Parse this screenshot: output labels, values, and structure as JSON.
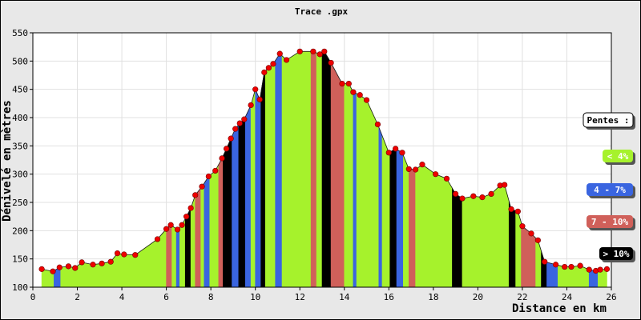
{
  "chart_data": {
    "type": "area",
    "title": "Trace .gpx",
    "xlabel": "Distance en km",
    "ylabel": "Dénivelé en mètres",
    "xlim": [
      0,
      26
    ],
    "ylim": [
      100,
      550
    ],
    "xticks": [
      "0",
      "2",
      "4",
      "6",
      "8",
      "10",
      "12",
      "14",
      "16",
      "18",
      "20",
      "22",
      "24",
      "26"
    ],
    "yticks": [
      "100",
      "150",
      "200",
      "250",
      "300",
      "350",
      "400",
      "450",
      "500",
      "550"
    ],
    "grid": true,
    "colors": {
      "lt4": "#a6f22c",
      "4to7": "#3a65e0",
      "7to10": "#d0605a",
      "gt10": "#000000",
      "point": "#ee0000",
      "background": "#ffffff",
      "frame": "#e8e8e8"
    },
    "legend": {
      "title": "Pentes :",
      "placement": "right",
      "items": [
        {
          "label": "< 4%",
          "class": "lt4"
        },
        {
          "label": "4 - 7%",
          "class": "4to7"
        },
        {
          "label": "7 - 10%",
          "class": "7to10"
        },
        {
          "label": "> 10%",
          "class": "gt10"
        }
      ]
    },
    "points": [
      [
        0.4,
        132
      ],
      [
        0.9,
        128
      ],
      [
        1.2,
        135
      ],
      [
        1.6,
        137
      ],
      [
        1.9,
        134
      ],
      [
        2.2,
        144
      ],
      [
        2.7,
        140
      ],
      [
        3.1,
        142
      ],
      [
        3.5,
        145
      ],
      [
        3.8,
        160
      ],
      [
        4.1,
        158
      ],
      [
        4.6,
        157
      ],
      [
        5.6,
        185
      ],
      [
        6.0,
        203
      ],
      [
        6.2,
        210
      ],
      [
        6.5,
        202
      ],
      [
        6.7,
        210
      ],
      [
        6.9,
        225
      ],
      [
        7.1,
        240
      ],
      [
        7.3,
        263
      ],
      [
        7.6,
        278
      ],
      [
        7.9,
        296
      ],
      [
        8.2,
        306
      ],
      [
        8.5,
        328
      ],
      [
        8.7,
        345
      ],
      [
        8.9,
        363
      ],
      [
        9.1,
        380
      ],
      [
        9.3,
        390
      ],
      [
        9.5,
        397
      ],
      [
        9.8,
        422
      ],
      [
        10.0,
        450
      ],
      [
        10.2,
        432
      ],
      [
        10.4,
        480
      ],
      [
        10.6,
        488
      ],
      [
        10.8,
        495
      ],
      [
        11.1,
        513
      ],
      [
        11.4,
        502
      ],
      [
        12.0,
        517
      ],
      [
        12.6,
        517
      ],
      [
        12.9,
        512
      ],
      [
        13.1,
        517
      ],
      [
        13.4,
        497
      ],
      [
        13.9,
        460
      ],
      [
        14.2,
        460
      ],
      [
        14.4,
        445
      ],
      [
        14.7,
        440
      ],
      [
        15.0,
        431
      ],
      [
        15.5,
        388
      ],
      [
        16.0,
        338
      ],
      [
        16.3,
        345
      ],
      [
        16.6,
        338
      ],
      [
        16.9,
        309
      ],
      [
        17.2,
        308
      ],
      [
        17.5,
        317
      ],
      [
        18.1,
        300
      ],
      [
        18.6,
        292
      ],
      [
        19.0,
        265
      ],
      [
        19.3,
        257
      ],
      [
        19.8,
        261
      ],
      [
        20.2,
        259
      ],
      [
        20.6,
        265
      ],
      [
        21.0,
        280
      ],
      [
        21.2,
        281
      ],
      [
        21.5,
        238
      ],
      [
        21.8,
        234
      ],
      [
        22.0,
        208
      ],
      [
        22.4,
        195
      ],
      [
        22.7,
        183
      ],
      [
        23.0,
        145
      ],
      [
        23.5,
        140
      ],
      [
        23.9,
        136
      ],
      [
        24.2,
        136
      ],
      [
        24.6,
        138
      ],
      [
        25.0,
        131
      ],
      [
        25.3,
        129
      ],
      [
        25.5,
        131
      ],
      [
        25.8,
        132
      ]
    ],
    "segments": [
      {
        "from": 0.4,
        "to": 0.95,
        "class": "lt4"
      },
      {
        "from": 0.95,
        "to": 1.25,
        "class": "4to7"
      },
      {
        "from": 1.25,
        "to": 6.0,
        "class": "lt4"
      },
      {
        "from": 6.0,
        "to": 6.25,
        "class": "7to10"
      },
      {
        "from": 6.25,
        "to": 6.45,
        "class": "lt4"
      },
      {
        "from": 6.45,
        "to": 6.6,
        "class": "4to7"
      },
      {
        "from": 6.6,
        "to": 6.85,
        "class": "lt4"
      },
      {
        "from": 6.85,
        "to": 7.1,
        "class": "gt10"
      },
      {
        "from": 7.1,
        "to": 7.3,
        "class": "lt4"
      },
      {
        "from": 7.3,
        "to": 7.55,
        "class": "7to10"
      },
      {
        "from": 7.55,
        "to": 7.7,
        "class": "lt4"
      },
      {
        "from": 7.7,
        "to": 7.95,
        "class": "4to7"
      },
      {
        "from": 7.95,
        "to": 8.35,
        "class": "lt4"
      },
      {
        "from": 8.35,
        "to": 8.55,
        "class": "7to10"
      },
      {
        "from": 8.55,
        "to": 8.95,
        "class": "gt10"
      },
      {
        "from": 8.95,
        "to": 9.25,
        "class": "4to7"
      },
      {
        "from": 9.25,
        "to": 9.55,
        "class": "gt10"
      },
      {
        "from": 9.55,
        "to": 9.8,
        "class": "4to7"
      },
      {
        "from": 9.8,
        "to": 10.0,
        "class": "lt4"
      },
      {
        "from": 10.0,
        "to": 10.25,
        "class": "4to7"
      },
      {
        "from": 10.25,
        "to": 10.45,
        "class": "gt10"
      },
      {
        "from": 10.45,
        "to": 10.9,
        "class": "lt4"
      },
      {
        "from": 10.9,
        "to": 11.2,
        "class": "4to7"
      },
      {
        "from": 11.2,
        "to": 12.5,
        "class": "lt4"
      },
      {
        "from": 12.5,
        "to": 12.75,
        "class": "7to10"
      },
      {
        "from": 12.75,
        "to": 13.0,
        "class": "lt4"
      },
      {
        "from": 13.0,
        "to": 13.4,
        "class": "gt10"
      },
      {
        "from": 13.4,
        "to": 14.0,
        "class": "7to10"
      },
      {
        "from": 14.0,
        "to": 14.4,
        "class": "lt4"
      },
      {
        "from": 14.4,
        "to": 14.55,
        "class": "4to7"
      },
      {
        "from": 14.55,
        "to": 15.55,
        "class": "lt4"
      },
      {
        "from": 15.55,
        "to": 15.7,
        "class": "4to7"
      },
      {
        "from": 15.7,
        "to": 16.05,
        "class": "lt4"
      },
      {
        "from": 16.05,
        "to": 16.35,
        "class": "gt10"
      },
      {
        "from": 16.35,
        "to": 16.65,
        "class": "4to7"
      },
      {
        "from": 16.65,
        "to": 16.9,
        "class": "lt4"
      },
      {
        "from": 16.9,
        "to": 17.2,
        "class": "7to10"
      },
      {
        "from": 17.2,
        "to": 18.85,
        "class": "lt4"
      },
      {
        "from": 18.85,
        "to": 19.3,
        "class": "gt10"
      },
      {
        "from": 19.3,
        "to": 21.4,
        "class": "lt4"
      },
      {
        "from": 21.4,
        "to": 21.7,
        "class": "gt10"
      },
      {
        "from": 21.7,
        "to": 21.95,
        "class": "lt4"
      },
      {
        "from": 21.95,
        "to": 22.6,
        "class": "7to10"
      },
      {
        "from": 22.6,
        "to": 22.85,
        "class": "lt4"
      },
      {
        "from": 22.85,
        "to": 23.1,
        "class": "gt10"
      },
      {
        "from": 23.1,
        "to": 23.6,
        "class": "4to7"
      },
      {
        "from": 23.6,
        "to": 25.0,
        "class": "lt4"
      },
      {
        "from": 25.0,
        "to": 25.4,
        "class": "4to7"
      },
      {
        "from": 25.4,
        "to": 25.8,
        "class": "lt4"
      }
    ]
  }
}
